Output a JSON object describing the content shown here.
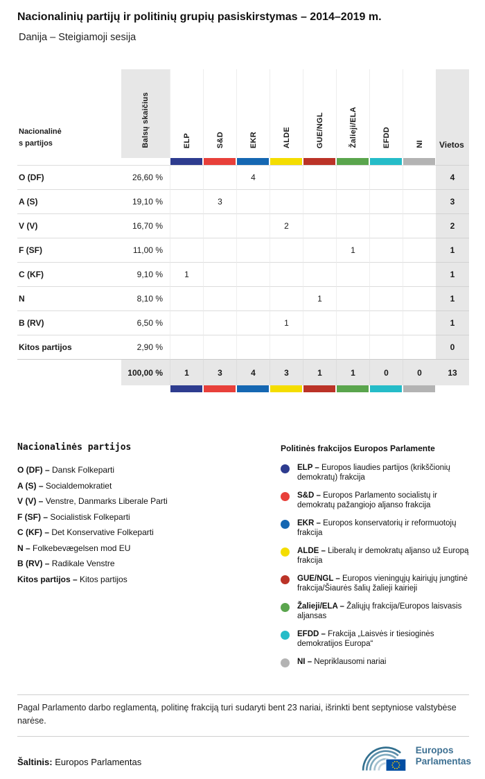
{
  "title": "Nacionalinių partijų ir politinių grupių pasiskirstymas – 2014–2019 m.",
  "subtitle": "Danija – Steigiamoji sesija",
  "chart_data": {
    "type": "table",
    "title": "Nacionalinių partijų ir politinių grupių pasiskirstymas – 2014–2019 m.",
    "subtitle": "Danija – Steigiamoji sesija",
    "columns": [
      "Nacionalinės partijos",
      "Balsų skaičius",
      "ELP",
      "S&D",
      "EKR",
      "ALDE",
      "GUE/NGL",
      "Žalieji/ELA",
      "EFDD",
      "NI",
      "Vietos"
    ],
    "groups": [
      {
        "code": "ELP",
        "color": "#2e3c8f"
      },
      {
        "code": "S&D",
        "color": "#e8403a"
      },
      {
        "code": "EKR",
        "color": "#1567b2"
      },
      {
        "code": "ALDE",
        "color": "#f4dd00"
      },
      {
        "code": "GUE/NGL",
        "color": "#bb3327"
      },
      {
        "code": "Žalieji/ELA",
        "color": "#5aa54d"
      },
      {
        "code": "EFDD",
        "color": "#25bcc8"
      },
      {
        "code": "NI",
        "color": "#b3b3b3"
      }
    ],
    "rows": [
      [
        "O (DF)",
        "26,60 %",
        "",
        "",
        "4",
        "",
        "",
        "",
        "",
        "",
        "4"
      ],
      [
        "A (S)",
        "19,10 %",
        "",
        "3",
        "",
        "",
        "",
        "",
        "",
        "",
        "3"
      ],
      [
        "V (V)",
        "16,70 %",
        "",
        "",
        "",
        "2",
        "",
        "",
        "",
        "",
        "2"
      ],
      [
        "F (SF)",
        "11,00 %",
        "",
        "",
        "",
        "",
        "",
        "1",
        "",
        "",
        "1"
      ],
      [
        "C (KF)",
        "9,10 %",
        "1",
        "",
        "",
        "",
        "",
        "",
        "",
        "",
        "1"
      ],
      [
        "N",
        "8,10 %",
        "",
        "",
        "",
        "",
        "1",
        "",
        "",
        "",
        "1"
      ],
      [
        "B (RV)",
        "6,50 %",
        "",
        "",
        "",
        "1",
        "",
        "",
        "",
        "",
        "1"
      ],
      [
        "Kitos partijos",
        "2,90 %",
        "",
        "",
        "",
        "",
        "",
        "",
        "",
        "",
        "0"
      ]
    ],
    "total": [
      "",
      "100,00 %",
      "1",
      "3",
      "4",
      "3",
      "1",
      "1",
      "0",
      "0",
      "13"
    ]
  },
  "legend_parties": {
    "heading": "Nacionalinės partijos",
    "items": [
      {
        "code": "O (DF)",
        "name": "Dansk Folkeparti"
      },
      {
        "code": "A (S)",
        "name": "Socialdemokratiet"
      },
      {
        "code": "V (V)",
        "name": "Venstre, Danmarks Liberale Parti"
      },
      {
        "code": "F (SF)",
        "name": "Socialistisk Folkeparti"
      },
      {
        "code": "C (KF)",
        "name": "Det Konservative Folkeparti"
      },
      {
        "code": "N",
        "name": "Folkebevægelsen mod EU"
      },
      {
        "code": "B (RV)",
        "name": "Radikale Venstre"
      },
      {
        "code": "Kitos partijos",
        "name": "Kitos partijos"
      }
    ]
  },
  "legend_groups": {
    "heading": "Politinės frakcijos Europos Parlamente",
    "items": [
      {
        "code": "ELP",
        "color": "#2e3c8f",
        "name": "Europos liaudies partijos (krikščionių demokratų) frakcija"
      },
      {
        "code": "S&D",
        "color": "#e8403a",
        "name": "Europos Parlamento socialistų ir demokratų pažangiojo aljanso frakcija"
      },
      {
        "code": "EKR",
        "color": "#1567b2",
        "name": "Europos konservatorių ir reformuotojų frakcija"
      },
      {
        "code": "ALDE",
        "color": "#f4dd00",
        "name": "Liberalų ir demokratų aljanso už Europą frakcija"
      },
      {
        "code": "GUE/NGL",
        "color": "#bb3327",
        "name": "Europos vieningųjų kairiųjų jungtinė frakcija/Šiaurės šalių žalieji kairieji"
      },
      {
        "code": "Žalieji/ELA",
        "color": "#5aa54d",
        "name": "Žaliųjų frakcija/Europos laisvasis aljansas"
      },
      {
        "code": "EFDD",
        "color": "#25bcc8",
        "name": "Frakcija „Laisvės ir tiesioginės demokratijos Europa“"
      },
      {
        "code": "NI",
        "color": "#b3b3b3",
        "name": "Nepriklausomi nariai"
      }
    ]
  },
  "footnote": "Pagal Parlamento darbo reglamentą, politinę frakciją turi sudaryti bent 23 nariai, išrinkti bent septyniose valstybėse narėse.",
  "source": {
    "label": "Šaltinis:",
    "value": "Europos Parlamentas",
    "logo_line1": "Europos",
    "logo_line2": "Parlamentas"
  }
}
